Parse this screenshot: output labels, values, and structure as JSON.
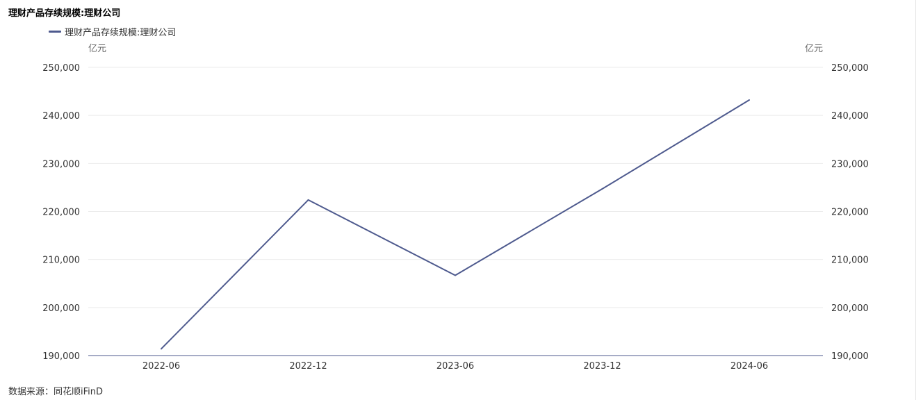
{
  "header": {
    "title": "理财产品存续规模:理财公司"
  },
  "footer": {
    "source": "数据来源：同花顺iFinD"
  },
  "chart_data": {
    "type": "line",
    "title": "理财产品存续规模:理财公司",
    "categories": [
      "2022-06",
      "2022-12",
      "2023-06",
      "2023-12",
      "2024-06"
    ],
    "series": [
      {
        "name": "理财产品存续规模:理财公司",
        "color": "#4e5a8e",
        "values": [
          191400,
          222400,
          206700,
          224700,
          243200
        ]
      }
    ],
    "y_unit_left": "亿元",
    "y_unit_right": "亿元",
    "ylim": [
      190000,
      250000
    ],
    "yticks": [
      "190,000",
      "200,000",
      "210,000",
      "220,000",
      "230,000",
      "240,000",
      "250,000"
    ],
    "grid": true,
    "legend_position": "top-left",
    "colors": {
      "axis": "#4e5a8e",
      "grid": "#ebebeb"
    }
  }
}
